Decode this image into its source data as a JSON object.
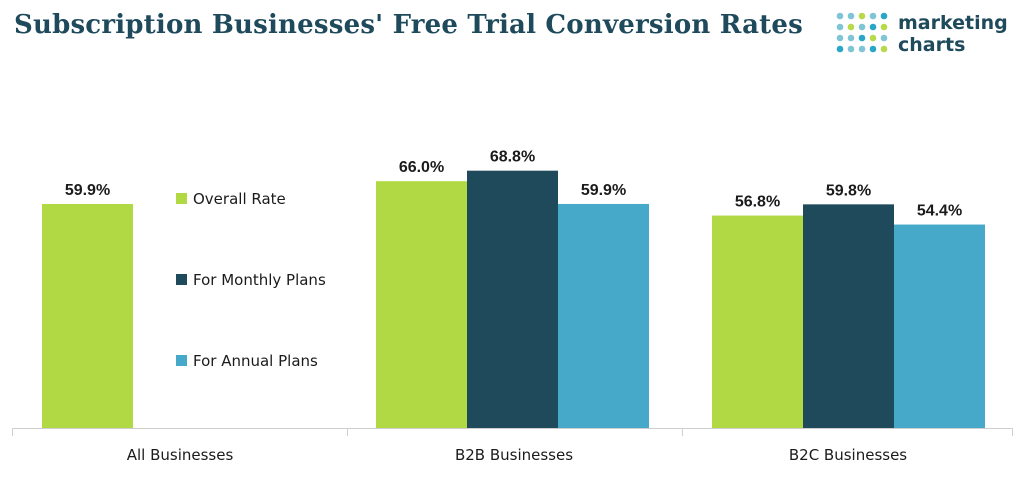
{
  "title": "Subscription Businesses' Free Trial Conversion Rates",
  "logo": {
    "line1": "marketing",
    "line2": "charts",
    "dot_colors": [
      "#7fc5d6",
      "#b7d94a",
      "#1e4a5c",
      "#2aa6c6"
    ]
  },
  "chart_data": {
    "type": "bar",
    "categories": [
      "All Businesses",
      "B2B Businesses",
      "B2C Businesses"
    ],
    "series": [
      {
        "name": "Overall Rate",
        "color": "#b1d944",
        "values": [
          59.9,
          66.0,
          56.8
        ],
        "labels": [
          "59.9%",
          "66.0%",
          "56.8%"
        ]
      },
      {
        "name": "For Monthly Plans",
        "color": "#1e4a5c",
        "values": [
          null,
          68.8,
          59.8
        ],
        "labels": [
          "",
          "68.8%",
          "59.8%"
        ]
      },
      {
        "name": "For Annual Plans",
        "color": "#47a9c9",
        "values": [
          null,
          59.9,
          54.4
        ],
        "labels": [
          "",
          "59.9%",
          "54.4%"
        ]
      }
    ],
    "ylim": [
      0,
      100
    ],
    "grid": false,
    "legend_position": "inside-left"
  }
}
